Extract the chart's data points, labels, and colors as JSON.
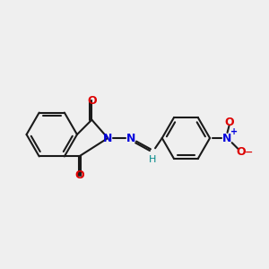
{
  "background_color": "#efefef",
  "bond_color": "#1a1a1a",
  "N_color": "#0000dd",
  "O_color": "#dd0000",
  "H_color": "#008888",
  "line_width": 1.5,
  "figsize": [
    3.0,
    3.0
  ],
  "dpi": 100,
  "xlim": [
    -2.6,
    3.2
  ],
  "ylim": [
    -1.8,
    1.8
  ]
}
